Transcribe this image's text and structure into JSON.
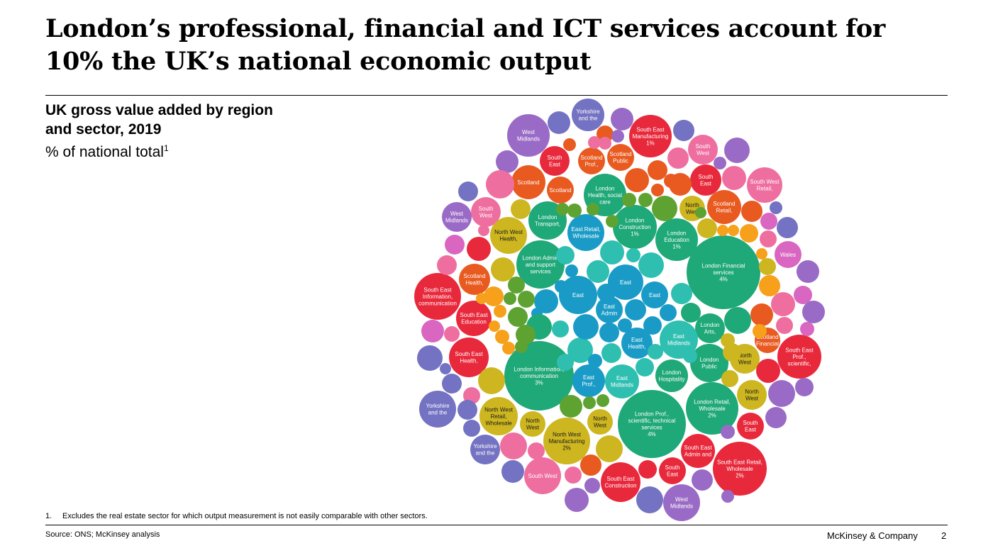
{
  "title": "London’s professional, financial and ICT services account for 10% the UK’s national economic output",
  "heading": {
    "title": "UK gross value added by region and sector, 2019",
    "subtitle": "% of national total",
    "footnote_marker": "1"
  },
  "footnote": {
    "number": "1.",
    "text": "Excludes the real estate sector for which output measurement is not easily comparable with other sectors."
  },
  "source": "Source: ONS; McKinsey analysis",
  "brand": "McKinsey & Company",
  "page_number": "2",
  "colors": {
    "London": "#1fa878",
    "East": "#1a9bc7",
    "East Midlands": "#2ebfb1",
    "South East": "#e8293c",
    "South West": "#ef6ea0",
    "Scotland": "#e85a1f",
    "North West": "#cdb620",
    "West Midlands": "#9a6bc6",
    "Yorkshire and the Humber": "#7472c2",
    "Wales": "#d966c0",
    "North East": "#5ea332",
    "Northern Ireland": "#f6a01b"
  },
  "chart_data": {
    "type": "bubble",
    "title": "UK gross value added by region and sector, 2019",
    "value_unit": "% of national total",
    "legend": "none",
    "bubbles": [
      {
        "region": "London",
        "label": "London Financial services",
        "pct": "4%",
        "value": 4.0
      },
      {
        "region": "London",
        "label": "London Prof., scientific, technical services",
        "pct": "4%",
        "value": 4.0
      },
      {
        "region": "London",
        "label": "London Information, communication",
        "pct": "3%",
        "value": 3.0
      },
      {
        "region": "London",
        "label": "London Retail, Wholesale",
        "pct": "2%",
        "value": 2.0
      },
      {
        "region": "South East",
        "label": "South East Retail, Wholesale",
        "pct": "2%",
        "value": 2.0
      },
      {
        "region": "North West",
        "label": "North West Manufacturing",
        "pct": "2%",
        "value": 1.5
      },
      {
        "region": "South East",
        "label": "South East Manufacturing",
        "pct": "1%",
        "value": 1.0
      },
      {
        "region": "London",
        "label": "London Construction",
        "pct": "1%",
        "value": 1.0
      },
      {
        "region": "London",
        "label": "London Education",
        "pct": "1%",
        "value": 0.9
      },
      {
        "region": "London",
        "label": "London Admin and support services",
        "pct": "",
        "value": 1.2
      },
      {
        "region": "London",
        "label": "London Health, social care",
        "pct": "",
        "value": 0.9
      },
      {
        "region": "London",
        "label": "London Transport,",
        "pct": "",
        "value": 0.7
      },
      {
        "region": "London",
        "label": "London Arts,",
        "pct": "",
        "value": 0.45
      },
      {
        "region": "London",
        "label": "London Public",
        "pct": "",
        "value": 0.7
      },
      {
        "region": "London",
        "label": "London Hospitality",
        "pct": "",
        "value": 0.6
      },
      {
        "region": "East",
        "label": "East Retail, Wholesale",
        "pct": "",
        "value": 0.8
      },
      {
        "region": "East",
        "label": "East",
        "pct": "",
        "value": 0.7
      },
      {
        "region": "East",
        "label": "East",
        "pct": "",
        "value": 0.5
      },
      {
        "region": "East",
        "label": "East",
        "pct": "",
        "value": 0.4
      },
      {
        "region": "East",
        "label": "East Admin",
        "pct": "",
        "value": 0.4
      },
      {
        "region": "East",
        "label": "East Health,",
        "pct": "",
        "value": 0.45
      },
      {
        "region": "East",
        "label": "East Prof.,",
        "pct": "",
        "value": 0.5
      },
      {
        "region": "East Midlands",
        "label": "East Midlands",
        "pct": "",
        "value": 0.6
      },
      {
        "region": "East Midlands",
        "label": "East Midlands",
        "pct": "",
        "value": 0.55
      },
      {
        "region": "South East",
        "label": "South East Information, communication",
        "pct": "",
        "value": 0.9
      },
      {
        "region": "South East",
        "label": "South East Prof., scientific,",
        "pct": "",
        "value": 0.8
      },
      {
        "region": "South East",
        "label": "South East Health,",
        "pct": "",
        "value": 0.6
      },
      {
        "region": "South East",
        "label": "South East Education",
        "pct": "",
        "value": 0.5
      },
      {
        "region": "South East",
        "label": "South East Construction",
        "pct": "",
        "value": 0.55
      },
      {
        "region": "South East",
        "label": "South East Admin and",
        "pct": "",
        "value": 0.45
      },
      {
        "region": "South East",
        "label": "South East",
        "pct": "",
        "value": 0.4
      },
      {
        "region": "South East",
        "label": "South East",
        "pct": "",
        "value": 0.4
      },
      {
        "region": "South East",
        "label": "South East",
        "pct": "",
        "value": 0.3
      },
      {
        "region": "South East",
        "label": "South East",
        "pct": "",
        "value": 0.3
      },
      {
        "region": "South West",
        "label": "South West Retail,",
        "pct": "",
        "value": 0.4
      },
      {
        "region": "South West",
        "label": "South West",
        "pct": "",
        "value": 0.45
      },
      {
        "region": "South West",
        "label": "South West",
        "pct": "",
        "value": 0.3
      },
      {
        "region": "South West",
        "label": "South West",
        "pct": "",
        "value": 0.3
      },
      {
        "region": "Scotland",
        "label": "Scotland Health,",
        "pct": "",
        "value": 0.4
      },
      {
        "region": "Scotland",
        "label": "Scotland Financial",
        "pct": "",
        "value": 0.3
      },
      {
        "region": "Scotland",
        "label": "Scotland Retail,",
        "pct": "",
        "value": 0.35
      },
      {
        "region": "Scotland",
        "label": "Scotland",
        "pct": "",
        "value": 0.35
      },
      {
        "region": "Scotland",
        "label": "Scotland",
        "pct": "",
        "value": 0.25
      },
      {
        "region": "Scotland",
        "label": "Scotland Prof.,",
        "pct": "",
        "value": 0.25
      },
      {
        "region": "Scotland",
        "label": "Scotland Public",
        "pct": "",
        "value": 0.25
      },
      {
        "region": "North West",
        "label": "North West Retail, Wholesale",
        "pct": "",
        "value": 0.6
      },
      {
        "region": "North West",
        "label": "North West Health,",
        "pct": "",
        "value": 0.4
      },
      {
        "region": "North West",
        "label": "North West",
        "pct": "",
        "value": 0.3
      },
      {
        "region": "North West",
        "label": "North West",
        "pct": "",
        "value": 0.3
      },
      {
        "region": "North West",
        "label": "North West",
        "pct": "",
        "value": 0.25
      },
      {
        "region": "North West",
        "label": "North West",
        "pct": "",
        "value": 0.25
      },
      {
        "region": "North West",
        "label": "North West",
        "pct": "",
        "value": 0.25
      },
      {
        "region": "West Midlands",
        "label": "West Midlands",
        "pct": "",
        "value": 0.4
      },
      {
        "region": "West Midlands",
        "label": "West Midlands",
        "pct": "",
        "value": 0.35
      },
      {
        "region": "West Midlands",
        "label": "West Midlands",
        "pct": "",
        "value": 0.25
      },
      {
        "region": "Yorkshire and the Humber",
        "label": "Yorkshire and the",
        "pct": "",
        "value": 0.4
      },
      {
        "region": "Yorkshire and the Humber",
        "label": "Yorkshire and the",
        "pct": "",
        "value": 0.25
      },
      {
        "region": "Yorkshire and the Humber",
        "label": "Yorkshire and the",
        "pct": "",
        "value": 0.25
      },
      {
        "region": "Wales",
        "label": "Wales",
        "pct": "",
        "value": 0.2
      }
    ]
  }
}
